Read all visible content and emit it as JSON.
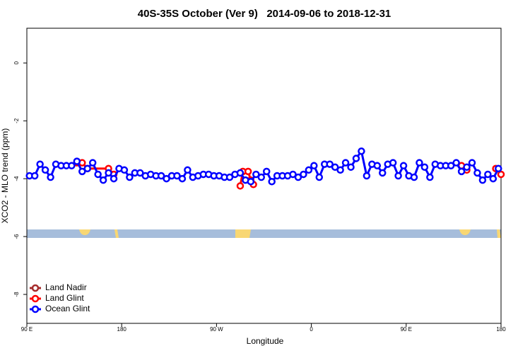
{
  "chart_data": {
    "type": "line",
    "title": "40S-35S October (Ver 9)   2014-09-06 to 2018-12-31",
    "x_label": "Longitude",
    "y_label": "XCO2 - MLO trend (ppm)",
    "xlim": [
      90,
      540
    ],
    "ylim": [
      -9,
      1.2
    ],
    "xticks": [
      {
        "value": 90,
        "label": "90 E"
      },
      180,
      {
        "value": 270,
        "label": "90 W"
      },
      {
        "value": 360,
        "label": "0"
      },
      {
        "value": 450,
        "label": "90 E"
      },
      {
        "value": 540,
        "label": "180"
      }
    ],
    "yticks": [
      0,
      -2,
      -4,
      -6,
      -8
    ],
    "legend": "bottom-left",
    "series": [
      {
        "name": "Land Nadir",
        "color": "#a52a2a",
        "x": [],
        "values": []
      },
      {
        "name": "Land Glint",
        "color": "#ff0000",
        "x": [
          137.5,
          142.5,
          147.5,
          167.5,
          172.5,
          230,
          292.5,
          295,
          300,
          302.5,
          305,
          400,
          502.5,
          507.5,
          520,
          535,
          540
        ],
        "values": [
          -3.45,
          -3.45,
          -3.65,
          -3.65,
          -3.85,
          null,
          -4.25,
          -3.75,
          -3.75,
          -4.05,
          -4.2,
          null,
          -3.55,
          -3.7,
          null,
          -3.65,
          -3.85
        ]
      },
      {
        "name": "Ocean Glint",
        "color": "#0000ff",
        "x": [
          92.5,
          97.5,
          102.5,
          107.5,
          112.5,
          117.5,
          122.5,
          127.5,
          132.5,
          137.5,
          142.5,
          147.5,
          152.5,
          157.5,
          162.5,
          167.5,
          172.5,
          177.5,
          182.5,
          187.5,
          192.5,
          197.5,
          202.5,
          207.5,
          212.5,
          217.5,
          222.5,
          227.5,
          232.5,
          237.5,
          242.5,
          247.5,
          252.5,
          257.5,
          262.5,
          267.5,
          272.5,
          277.5,
          282.5,
          287.5,
          292.5,
          297.5,
          302.5,
          307.5,
          312.5,
          317.5,
          322.5,
          327.5,
          332.5,
          337.5,
          342.5,
          347.5,
          352.5,
          357.5,
          362.5,
          367.5,
          372.5,
          377.5,
          382.5,
          387.5,
          392.5,
          397.5,
          402.5,
          407.5,
          412.5,
          417.5,
          422.5,
          427.5,
          432.5,
          437.5,
          442.5,
          447.5,
          452.5,
          457.5,
          462.5,
          467.5,
          472.5,
          477.5,
          482.5,
          487.5,
          492.5,
          497.5,
          502.5,
          507.5,
          512.5,
          517.5,
          522.5,
          527.5,
          532.5,
          537.5
        ],
        "values": [
          -3.9,
          -3.9,
          -3.5,
          -3.7,
          -3.95,
          -3.5,
          -3.55,
          -3.55,
          -3.55,
          -3.4,
          -3.75,
          -3.65,
          -3.45,
          -3.85,
          -4.05,
          -3.8,
          -4.0,
          -3.65,
          -3.7,
          -3.95,
          -3.8,
          -3.8,
          -3.9,
          -3.85,
          -3.9,
          -3.9,
          -4.0,
          -3.9,
          -3.9,
          -4.0,
          -3.7,
          -3.95,
          -3.9,
          -3.85,
          -3.85,
          -3.9,
          -3.9,
          -3.95,
          -3.95,
          -3.85,
          -3.8,
          -4.05,
          -4.1,
          -3.85,
          -3.95,
          -3.75,
          -4.1,
          -3.9,
          -3.9,
          -3.9,
          -3.85,
          -3.95,
          -3.85,
          -3.7,
          -3.55,
          -3.95,
          -3.5,
          -3.5,
          -3.6,
          -3.7,
          -3.45,
          -3.6,
          -3.3,
          -3.05,
          -3.9,
          -3.5,
          -3.55,
          -3.8,
          -3.5,
          -3.45,
          -3.9,
          -3.55,
          -3.9,
          -3.95,
          -3.45,
          -3.6,
          -3.95,
          -3.5,
          -3.55,
          -3.55,
          -3.55,
          -3.45,
          -3.75,
          -3.6,
          -3.45,
          -3.8,
          -4.05,
          -3.85,
          -4.0,
          -3.65
        ]
      }
    ]
  }
}
